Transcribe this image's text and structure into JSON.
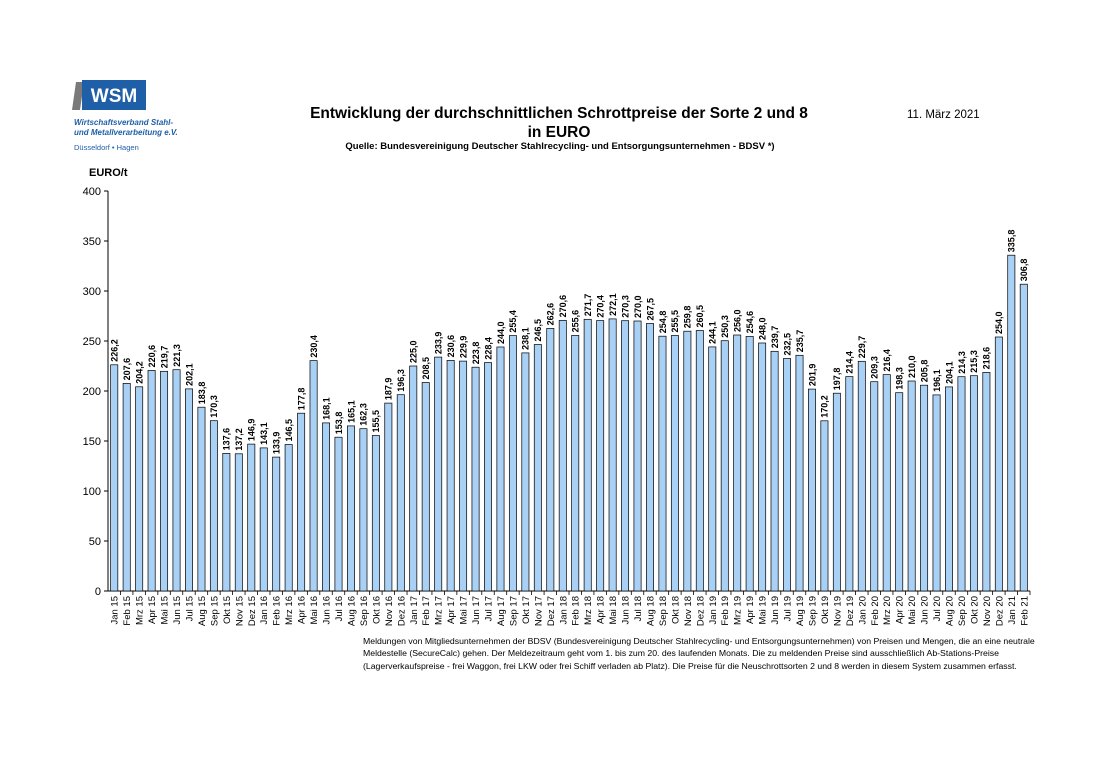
{
  "logo": {
    "text": "WSM",
    "line1": "Wirtschaftsverband Stahl-",
    "line2": "und Metallverarbeitung e.V.",
    "city": "Düsseldorf • Hagen"
  },
  "header": {
    "title_line1": "Entwicklung der durchschnittlichen Schrottpreise der Sorte 2 und  8",
    "title_line2": "in EURO",
    "subtitle": "Quelle: Bundesvereinigung Deutscher Stahlrecycling- und Entsorgungsunternehmen - BDSV *)",
    "date": "11. März 2021"
  },
  "footnote": "Meldungen von Mitgliedsunternehmen der BDSV (Bundesvereinigung Deutscher Stahlrecycling- und Entsorgungsunternehmen) von Preisen und Mengen, die an eine neutrale Meldestelle (SecureCalc) gehen. Der Meldezeitraum geht vom 1. bis zum 20. des laufenden Monats. Die zu meldenden Preise sind ausschließlich Ab-Stations-Preise (Lagerverkaufspreise - frei Waggon, frei LKW oder frei Schiff verladen ab Platz). Die Preise für die Neuschrottsorten 2 und 8 werden in diesem System zusammen erfasst.",
  "colors": {
    "bar_fill": "#a9d0f5",
    "bar_stroke": "#000000",
    "axis": "#000000"
  },
  "chart_data": {
    "type": "bar",
    "ylabel": "EURO/t",
    "ylim": [
      0,
      400
    ],
    "yticks": [
      "0",
      "50",
      "100",
      "150",
      "200",
      "250",
      "300",
      "350",
      "400"
    ],
    "grid": false,
    "categories": [
      "Jan 15",
      "Feb 15",
      "Mrz 15",
      "Apr 15",
      "Mai 15",
      "Jun 15",
      "Jul 15",
      "Aug 15",
      "Sep 15",
      "Okt 15",
      "Nov 15",
      "Dez 15",
      "Jan 16",
      "Feb 16",
      "Mrz 16",
      "Apr 16",
      "Mai 16",
      "Jun 16",
      "Jul 16",
      "Aug 16",
      "Sep 16",
      "Okt 16",
      "Nov 16",
      "Dez 16",
      "Jan 17",
      "Feb 17",
      "Mrz 17",
      "Apr 17",
      "Mai 17",
      "Jun 17",
      "Jul 17",
      "Aug 17",
      "Sep 17",
      "Okt 17",
      "Nov 17",
      "Dez 17",
      "Jan 18",
      "Feb 18",
      "Mrz 18",
      "Apr 18",
      "Mai 18",
      "Jun 18",
      "Jul 18",
      "Aug 18",
      "Sep 18",
      "Okt 18",
      "Nov 18",
      "Dez 18",
      "Jan 19",
      "Feb 19",
      "Mrz 19",
      "Apr 19",
      "Mai 19",
      "Jun 19",
      "Jul 19",
      "Aug 19",
      "Sep 19",
      "Okt 19",
      "Nov 19",
      "Dez 19",
      "Jan 20",
      "Feb 20",
      "Mrz 20",
      "Apr 20",
      "Mai 20",
      "Jun 20",
      "Jul 20",
      "Aug 20",
      "Sep 20",
      "Okt 20",
      "Nov 20",
      "Dez 20",
      "Jan 21",
      "Feb 21"
    ],
    "values": [
      226.2,
      207.6,
      204.2,
      220.6,
      219.7,
      221.3,
      202.1,
      183.8,
      170.3,
      137.6,
      137.2,
      146.9,
      143.1,
      133.9,
      146.5,
      177.8,
      230.4,
      168.1,
      153.8,
      165.1,
      162.3,
      155.5,
      187.9,
      196.3,
      225.0,
      208.5,
      233.9,
      230.6,
      229.9,
      223.8,
      228.4,
      244.0,
      255.4,
      238.1,
      246.5,
      262.6,
      270.6,
      255.6,
      271.7,
      270.4,
      272.1,
      270.3,
      270.0,
      267.5,
      254.8,
      255.5,
      259.8,
      260.5,
      244.1,
      250.3,
      256.0,
      254.6,
      248.0,
      239.7,
      232.5,
      235.7,
      201.9,
      170.2,
      197.8,
      214.4,
      229.7,
      209.3,
      216.4,
      198.3,
      210.0,
      205.8,
      196.1,
      204.1,
      214.3,
      215.3,
      218.6,
      254.0,
      335.8,
      306.8
    ],
    "data_labels": [
      "226,2",
      "207,6",
      "204,2",
      "220,6",
      "219,7",
      "221,3",
      "202,1",
      "183,8",
      "170,3",
      "137,6",
      "137,2",
      "146,9",
      "143,1",
      "133,9",
      "146,5",
      "177,8",
      "230,4",
      "168,1",
      "153,8",
      "165,1",
      "162,3",
      "155,5",
      "187,9",
      "196,3",
      "225,0",
      "208,5",
      "233,9",
      "230,6",
      "229,9",
      "223,8",
      "228,4",
      "244,0",
      "255,4",
      "238,1",
      "246,5",
      "262,6",
      "270,6",
      "255,6",
      "271,7",
      "270,4",
      "272,1",
      "270,3",
      "270,0",
      "267,5",
      "254,8",
      "255,5",
      "259,8",
      "260,5",
      "244,1",
      "250,3",
      "256,0",
      "254,6",
      "248,0",
      "239,7",
      "232,5",
      "235,7",
      "201,9",
      "170,2",
      "197,8",
      "214,4",
      "229,7",
      "209,3",
      "216,4",
      "198,3",
      "210,0",
      "205,8",
      "196,1",
      "204,1",
      "214,3",
      "215,3",
      "218,6",
      "254,0",
      "335,8",
      "306,8"
    ]
  }
}
